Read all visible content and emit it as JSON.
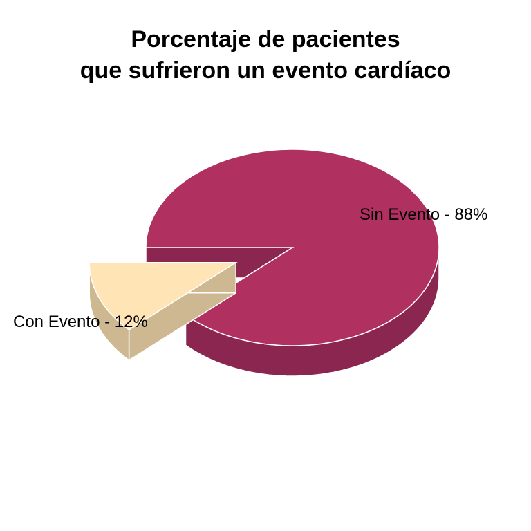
{
  "chart_data": {
    "type": "pie",
    "style": "3d-exploded",
    "title": [
      "Porcentaje de pacientes",
      "que sufrieron un evento cardíaco"
    ],
    "slices": [
      {
        "label": "Sin Evento - 88%",
        "value": 88,
        "color": "#B03060",
        "side_color": "#8B2650",
        "exploded": false
      },
      {
        "label": "Con Evento - 12%",
        "value": 12,
        "color": "#FFE4B5",
        "side_color": "#CDB891",
        "exploded": true
      }
    ]
  }
}
